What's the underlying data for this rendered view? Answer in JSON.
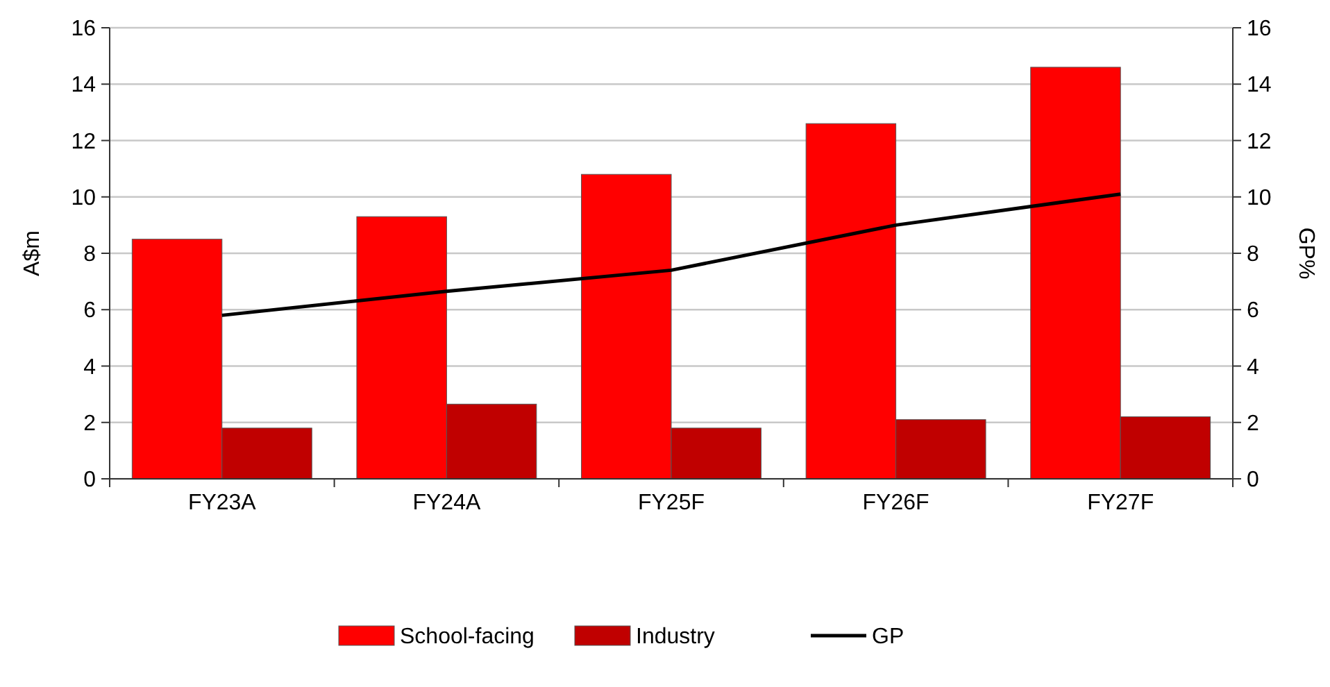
{
  "chart_data": {
    "type": "bar",
    "ylabel": "A$m",
    "y2label": "GP%",
    "categories": [
      "FY23A",
      "FY24A",
      "FY25F",
      "FY26F",
      "FY27F"
    ],
    "series": [
      {
        "name": "School-facing",
        "color": "#ff0000",
        "values": [
          8.5,
          9.3,
          10.8,
          12.6,
          14.6
        ]
      },
      {
        "name": "Industry",
        "color": "#c00000",
        "values": [
          1.8,
          2.65,
          1.8,
          2.1,
          2.2
        ]
      },
      {
        "name": "GP",
        "type": "line",
        "axis": "y2",
        "color": "#000000",
        "values": [
          5.8,
          6.65,
          7.4,
          9.0,
          10.1
        ]
      }
    ],
    "ylim": [
      0,
      16
    ],
    "yticks": [
      0,
      2,
      4,
      6,
      8,
      10,
      12,
      14,
      16
    ],
    "y2lim": [
      0,
      16
    ],
    "y2ticks": [
      0,
      2,
      4,
      6,
      8,
      10,
      12,
      14,
      16
    ],
    "grid": "y",
    "legend": "bottom",
    "marker": "none",
    "line_style": "solid"
  }
}
